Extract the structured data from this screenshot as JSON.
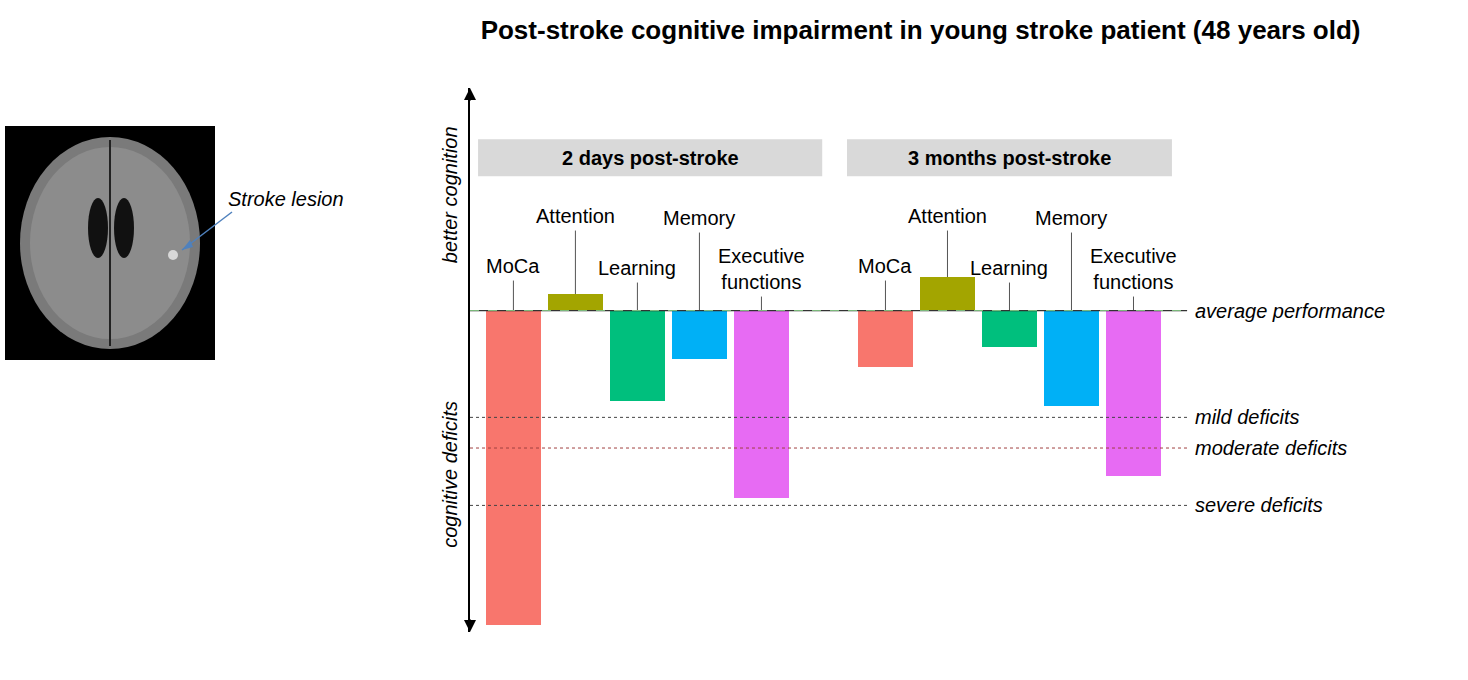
{
  "chart_data": {
    "type": "bar",
    "title": "Post-stroke cognitive impairment in young stroke patient (48 years old)",
    "categories": [
      "MoCa",
      "Attention",
      "Learning",
      "Memory",
      "Executive functions"
    ],
    "colors": [
      "#f8766d",
      "#a3a500",
      "#00bf7d",
      "#00b0f6",
      "#e76bf3"
    ],
    "series": [
      {
        "name": "2 days post-stroke",
        "values": [
          -3.18,
          0.17,
          -0.91,
          -0.49,
          -1.9
        ]
      },
      {
        "name": "3 months post-stroke",
        "values": [
          -0.57,
          0.34,
          -0.37,
          -0.96,
          -1.67
        ]
      }
    ],
    "ylim": [
      -3.25,
      2.25
    ],
    "yticks": [],
    "tick_labels": false,
    "grid": false,
    "y_labels": [
      "better cognition",
      "cognitive deficits"
    ],
    "reference_lines": [
      {
        "value": 0,
        "label": "average performance"
      },
      {
        "value": -1.08,
        "label": "mild deficits"
      },
      {
        "value": -1.39,
        "label": "moderate deficits"
      },
      {
        "value": -1.97,
        "label": "severe deficits"
      }
    ],
    "image_annotation": "Stroke lesion"
  }
}
